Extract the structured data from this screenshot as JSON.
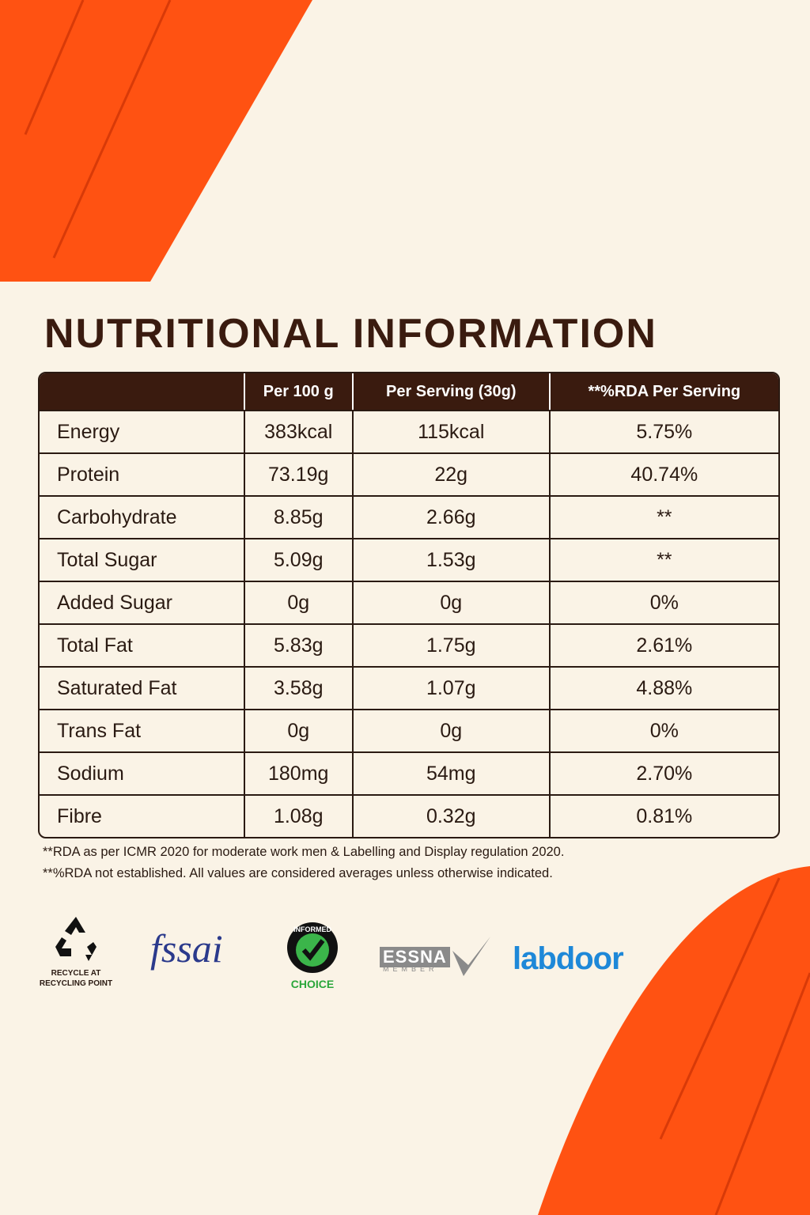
{
  "header": {
    "title": "NUTRITIONAL INFORMATION"
  },
  "table": {
    "columns": [
      "",
      "Per 100 g",
      "Per Serving (30g)",
      "**%RDA Per Serving"
    ],
    "rows": [
      [
        "Energy",
        "383kcal",
        "115kcal",
        "5.75%"
      ],
      [
        "Protein",
        "73.19g",
        "22g",
        "40.74%"
      ],
      [
        "Carbohydrate",
        "8.85g",
        "2.66g",
        "**"
      ],
      [
        "Total Sugar",
        "5.09g",
        "1.53g",
        "**"
      ],
      [
        "Added Sugar",
        "0g",
        "0g",
        "0%"
      ],
      [
        "Total Fat",
        "5.83g",
        "1.75g",
        "2.61%"
      ],
      [
        "Saturated Fat",
        "3.58g",
        "1.07g",
        "4.88%"
      ],
      [
        "Trans Fat",
        "0g",
        "0g",
        "0%"
      ],
      [
        "Sodium",
        "180mg",
        "54mg",
        "2.70%"
      ],
      [
        "Fibre",
        "1.08g",
        "0.32g",
        "0.81%"
      ]
    ]
  },
  "footnotes": [
    "**RDA as per ICMR 2020 for moderate work men & Labelling and Display regulation 2020.",
    "**%RDA not established. All values are considered averages unless otherwise indicated."
  ],
  "logos": {
    "recycle": "RECYCLE AT RECYCLING POINT",
    "fssai": "fssai",
    "informed": "INFORMED",
    "choice": "CHOICE",
    "essna": "ESSNA",
    "essna_member": "MEMBER",
    "labdoor": "labdoor"
  }
}
